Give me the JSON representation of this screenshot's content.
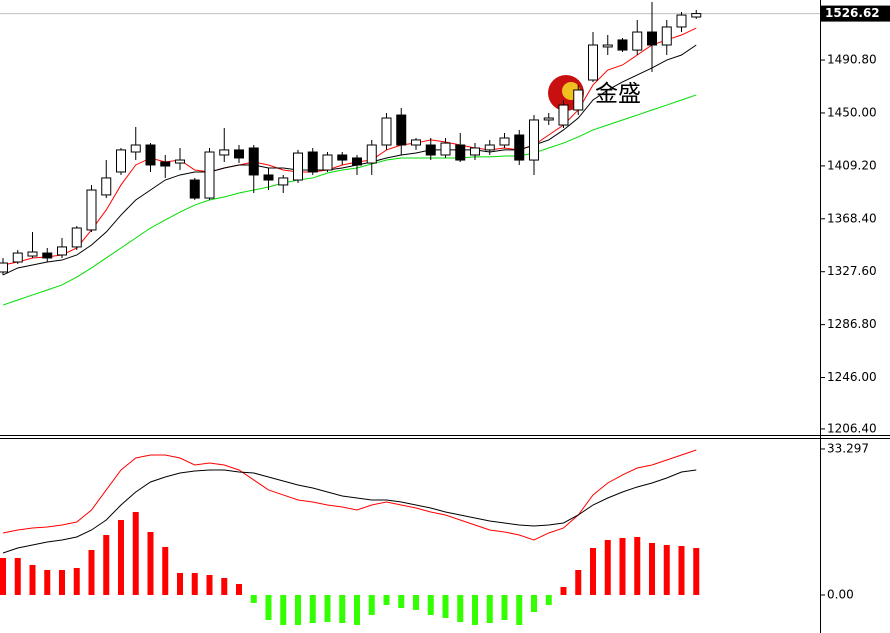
{
  "chart_data": [
    {
      "type": "candlestick",
      "watermark": "金盛",
      "up_color": "#ffffff",
      "down_color": "#000000",
      "open": [
        1327.4,
        1335.1,
        1339.7,
        1342.0,
        1340.5,
        1346.7,
        1359.8,
        1386.8,
        1404.5,
        1419.9,
        1425.3,
        1412.2,
        1411.4,
        1398.3,
        1384.4,
        1417.6,
        1421.5,
        1423.0,
        1402.2,
        1394.5,
        1398.3,
        1419.9,
        1406.0,
        1417.6,
        1415.3,
        1411.4,
        1425.3,
        1448.4,
        1425.3,
        1425.3,
        1417.6,
        1425.3,
        1417.6,
        1421.5,
        1425.3,
        1433.0,
        1413.7,
        1444.6,
        1440.7,
        1452.3,
        1475.4,
        1500.9,
        1506.3,
        1498.5,
        1512.4,
        1502.4,
        1516.3,
        1524.0
      ],
      "high": [
        1338.2,
        1344.4,
        1358.2,
        1345.9,
        1353.6,
        1362.8,
        1394.5,
        1413.7,
        1423.0,
        1439.2,
        1426.8,
        1417.6,
        1423.0,
        1399.9,
        1423.0,
        1438.4,
        1425.3,
        1425.3,
        1407.6,
        1402.2,
        1421.5,
        1423.0,
        1419.9,
        1419.9,
        1417.6,
        1429.2,
        1450.0,
        1453.8,
        1430.7,
        1430.7,
        1430.7,
        1434.6,
        1426.8,
        1429.2,
        1434.6,
        1436.9,
        1448.4,
        1450.0,
        1460.0,
        1471.6,
        1512.4,
        1510.1,
        1507.8,
        1521.7,
        1535.6,
        1521.7,
        1527.8,
        1529.4
      ],
      "low": [
        1325.1,
        1333.5,
        1338.2,
        1335.1,
        1338.2,
        1344.4,
        1358.2,
        1384.4,
        1402.2,
        1413.7,
        1404.5,
        1399.9,
        1406.0,
        1382.9,
        1382.9,
        1412.2,
        1411.4,
        1388.3,
        1390.6,
        1388.3,
        1396.0,
        1402.2,
        1404.5,
        1409.9,
        1402.2,
        1402.2,
        1421.5,
        1417.6,
        1421.5,
        1413.7,
        1415.3,
        1412.2,
        1413.7,
        1417.6,
        1423.0,
        1409.9,
        1402.2,
        1440.7,
        1438.4,
        1448.4,
        1473.9,
        1494.7,
        1497.0,
        1494.7,
        1481.6,
        1494.7,
        1512.4,
        1522.5
      ],
      "close": [
        1334.3,
        1342.0,
        1342.8,
        1338.2,
        1346.7,
        1361.3,
        1390.6,
        1399.9,
        1421.5,
        1425.3,
        1409.9,
        1409.1,
        1413.7,
        1384.4,
        1419.9,
        1421.5,
        1415.3,
        1402.2,
        1398.3,
        1399.9,
        1419.1,
        1404.5,
        1417.6,
        1413.7,
        1409.9,
        1425.3,
        1446.1,
        1425.3,
        1429.2,
        1417.6,
        1426.8,
        1413.7,
        1423.0,
        1425.3,
        1430.7,
        1413.7,
        1444.6,
        1446.1,
        1456.1,
        1467.7,
        1502.4,
        1502.4,
        1498.5,
        1512.4,
        1502.4,
        1516.3,
        1525.5,
        1526.62
      ],
      "lines": [
        {
          "color": "#ff0000",
          "values": [
            1332.8,
            1335.1,
            1338.2,
            1339.0,
            1340.5,
            1345.9,
            1359.8,
            1375.2,
            1394.5,
            1409.9,
            1415.3,
            1412.2,
            1413.7,
            1406.0,
            1404.5,
            1407.6,
            1409.9,
            1412.2,
            1409.9,
            1406.0,
            1404.5,
            1404.5,
            1406.0,
            1409.9,
            1412.2,
            1413.7,
            1421.5,
            1425.3,
            1426.8,
            1429.2,
            1427.6,
            1425.3,
            1423.0,
            1421.5,
            1423.0,
            1421.5,
            1425.3,
            1433.0,
            1440.7,
            1452.3,
            1471.6,
            1483.1,
            1487.0,
            1494.7,
            1502.4,
            1506.3,
            1510.1,
            1515.5
          ]
        },
        {
          "color": "#000000",
          "values": [
            1325.1,
            1330.5,
            1332.8,
            1335.1,
            1336.6,
            1340.5,
            1348.2,
            1358.2,
            1371.3,
            1382.9,
            1390.6,
            1398.3,
            1402.2,
            1404.5,
            1404.5,
            1407.6,
            1409.9,
            1409.9,
            1407.6,
            1407.6,
            1406.0,
            1406.0,
            1406.0,
            1407.6,
            1409.9,
            1412.2,
            1415.3,
            1417.6,
            1419.1,
            1421.5,
            1421.5,
            1421.5,
            1421.5,
            1419.9,
            1421.5,
            1421.5,
            1425.3,
            1429.2,
            1436.9,
            1446.1,
            1460.0,
            1467.7,
            1473.9,
            1479.3,
            1484.7,
            1490.8,
            1494.7,
            1502.4
          ]
        },
        {
          "color": "#00dd00",
          "values": [
            1301.9,
            1305.8,
            1309.7,
            1313.5,
            1317.4,
            1323.5,
            1330.5,
            1338.2,
            1345.9,
            1353.6,
            1361.3,
            1367.5,
            1373.6,
            1379.0,
            1382.9,
            1385.2,
            1388.3,
            1390.6,
            1392.9,
            1396.0,
            1398.3,
            1399.9,
            1403.7,
            1406.0,
            1407.6,
            1410.7,
            1413.7,
            1415.3,
            1415.3,
            1415.3,
            1415.3,
            1415.3,
            1416.1,
            1416.1,
            1416.8,
            1416.8,
            1419.1,
            1423.0,
            1426.8,
            1431.5,
            1436.9,
            1440.7,
            1444.6,
            1448.4,
            1452.3,
            1456.1,
            1460.0,
            1463.9
          ]
        }
      ],
      "last_price": 1526.62,
      "ylim": [
        1201.7,
        1537.1
      ],
      "yticks": [
        {
          "value": 1490.8,
          "label": "1490.80"
        },
        {
          "value": 1450,
          "label": "1450.00"
        },
        {
          "value": 1409.2,
          "label": "1409.20"
        },
        {
          "value": 1368.4,
          "label": "1368.40"
        },
        {
          "value": 1327.6,
          "label": "1327.60"
        },
        {
          "value": 1286.8,
          "label": "1286.80"
        },
        {
          "value": 1246,
          "label": "1246.00"
        },
        {
          "value": 1206.4,
          "label": "1206.40"
        }
      ]
    },
    {
      "type": "macd",
      "up_color": "#ff0000",
      "down_color": "#33ff00",
      "histogram": [
        8.44,
        8.44,
        6.84,
        5.7,
        5.7,
        6.16,
        10.26,
        13.68,
        17.1,
        18.93,
        14.37,
        10.95,
        5.02,
        5.02,
        4.56,
        3.88,
        2.51,
        -1.82,
        -5.7,
        -6.84,
        -6.84,
        -6.39,
        -6.16,
        -6.39,
        -6.84,
        -4.56,
        -2.28,
        -2.96,
        -3.42,
        -4.56,
        -5.25,
        -6.16,
        -6.84,
        -6.39,
        -5.7,
        -6.84,
        -3.88,
        -2.28,
        1.82,
        5.7,
        10.72,
        12.54,
        13.0,
        13.23,
        11.86,
        11.4,
        11.17,
        10.72
      ],
      "lines": [
        {
          "color": "#ff0000",
          "values": [
            14.14,
            14.82,
            15.28,
            15.51,
            15.96,
            16.65,
            19.38,
            23.95,
            28.51,
            31.24,
            31.93,
            31.93,
            31.24,
            29.65,
            30.1,
            29.65,
            28.51,
            26.23,
            23.95,
            22.81,
            21.66,
            21.21,
            20.52,
            20.07,
            19.38,
            20.52,
            21.21,
            20.52,
            19.84,
            18.93,
            18.24,
            17.1,
            15.96,
            14.82,
            14.37,
            13.68,
            12.54,
            14.14,
            15.28,
            18.24,
            22.81,
            25.54,
            27.37,
            28.96,
            29.65,
            30.79,
            31.93,
            33.07
          ]
        },
        {
          "color": "#000000",
          "values": [
            9.58,
            10.72,
            11.4,
            12.09,
            12.54,
            13.23,
            14.82,
            17.1,
            20.52,
            23.49,
            25.77,
            26.91,
            27.82,
            28.28,
            28.51,
            28.51,
            28.05,
            27.82,
            26.91,
            26.0,
            25.09,
            24.4,
            23.49,
            22.58,
            22.12,
            21.66,
            21.66,
            21.21,
            20.52,
            19.84,
            18.93,
            18.24,
            17.56,
            16.88,
            16.42,
            15.96,
            15.74,
            15.96,
            16.42,
            18.24,
            20.52,
            22.12,
            23.49,
            24.63,
            25.54,
            26.68,
            28.05,
            28.51
          ]
        }
      ],
      "ylim": [
        -8.67,
        35.8
      ],
      "yticks": [
        33.297,
        {
          "value": 0,
          "label": "0.00"
        }
      ]
    }
  ]
}
